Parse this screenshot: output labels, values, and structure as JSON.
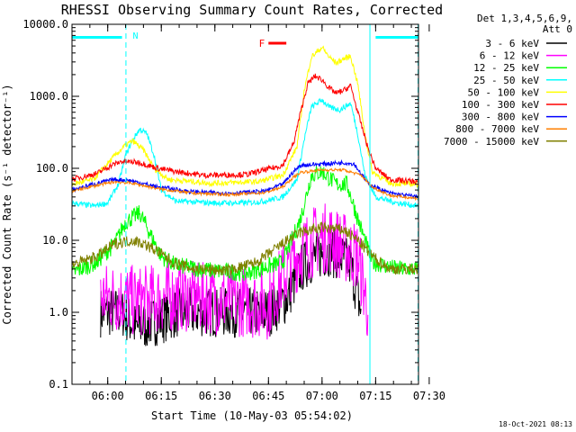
{
  "chart_data": {
    "type": "line",
    "title": "RHESSI Observing Summary Count Rates, Corrected",
    "xlabel": "Start Time (10-May-03 05:54:02)",
    "ylabel": "Corrected Count Rate (s⁻¹ detector⁻¹)",
    "ylog": true,
    "ylim": [
      0.1,
      10000
    ],
    "xlim_min": [
      -4,
      93
    ],
    "y_ticks": [
      {
        "v": 0.1,
        "label": "0.1"
      },
      {
        "v": 1,
        "label": "1.0"
      },
      {
        "v": 10,
        "label": "10.0"
      },
      {
        "v": 100,
        "label": "100.0"
      },
      {
        "v": 1000,
        "label": "1000.0"
      },
      {
        "v": 10000,
        "label": "10000.0"
      }
    ],
    "x_ticks": [
      {
        "v": 6,
        "label": "06:00"
      },
      {
        "v": 21,
        "label": "06:15"
      },
      {
        "v": 36,
        "label": "06:30"
      },
      {
        "v": 51,
        "label": "06:45"
      },
      {
        "v": 66,
        "label": "07:00"
      },
      {
        "v": 81,
        "label": "07:15"
      },
      {
        "v": 96,
        "label": "07:30"
      }
    ],
    "legend_header": [
      "Det 1,3,4,5,6,9,",
      "Att 0"
    ],
    "legend_position": "right",
    "series": [
      {
        "name": "3 - 6 keV",
        "color": "#000000",
        "gaps": [
          [
            -4,
            4
          ],
          [
            77,
            93
          ]
        ],
        "points": [
          [
            4,
            1
          ],
          [
            10,
            1
          ],
          [
            14,
            0.6
          ],
          [
            26,
            1
          ],
          [
            51,
            1
          ],
          [
            56,
            1.5
          ],
          [
            60,
            4
          ],
          [
            64,
            6
          ],
          [
            68,
            7
          ],
          [
            71,
            6
          ],
          [
            74,
            4.5
          ],
          [
            77,
            1
          ]
        ]
      },
      {
        "name": "6 - 12 keV",
        "color": "#ff00ff",
        "gaps": [
          [
            -4,
            4
          ],
          [
            79,
            93
          ]
        ],
        "points": [
          [
            4,
            1.6
          ],
          [
            10,
            1.6
          ],
          [
            14,
            1.4
          ],
          [
            26,
            1.7
          ],
          [
            51,
            1.3
          ],
          [
            55,
            3
          ],
          [
            60,
            7
          ],
          [
            64,
            10
          ],
          [
            68,
            11
          ],
          [
            72,
            8
          ],
          [
            76,
            6
          ],
          [
            79,
            1
          ]
        ]
      },
      {
        "name": "12 - 25 keV",
        "color": "#00ff00",
        "points": [
          [
            -4,
            3.5
          ],
          [
            3,
            5
          ],
          [
            8,
            9
          ],
          [
            11,
            18
          ],
          [
            15,
            24
          ],
          [
            18,
            12
          ],
          [
            21,
            6
          ],
          [
            25,
            4.5
          ],
          [
            35,
            3.8
          ],
          [
            45,
            3.5
          ],
          [
            55,
            5
          ],
          [
            60,
            20
          ],
          [
            63,
            80
          ],
          [
            66,
            90
          ],
          [
            70,
            60
          ],
          [
            73,
            60
          ],
          [
            76,
            20
          ],
          [
            80,
            5
          ],
          [
            87,
            4
          ],
          [
            93,
            4
          ]
        ]
      },
      {
        "name": "25 - 50 keV",
        "color": "#00ffff",
        "points": [
          [
            -4,
            33
          ],
          [
            2,
            30
          ],
          [
            6,
            33
          ],
          [
            9,
            60
          ],
          [
            11,
            150
          ],
          [
            13,
            250
          ],
          [
            15,
            350
          ],
          [
            17,
            300
          ],
          [
            19,
            150
          ],
          [
            21,
            50
          ],
          [
            25,
            35
          ],
          [
            35,
            33
          ],
          [
            45,
            33
          ],
          [
            50,
            35
          ],
          [
            55,
            40
          ],
          [
            59,
            70
          ],
          [
            61,
            250
          ],
          [
            63,
            700
          ],
          [
            66,
            900
          ],
          [
            68,
            700
          ],
          [
            71,
            650
          ],
          [
            74,
            800
          ],
          [
            76,
            300
          ],
          [
            78,
            80
          ],
          [
            81,
            40
          ],
          [
            87,
            33
          ],
          [
            93,
            30
          ]
        ]
      },
      {
        "name": "50 - 100 keV",
        "color": "#ffff00",
        "points": [
          [
            -4,
            60
          ],
          [
            2,
            70
          ],
          [
            8,
            150
          ],
          [
            11,
            210
          ],
          [
            13,
            240
          ],
          [
            16,
            180
          ],
          [
            19,
            100
          ],
          [
            23,
            70
          ],
          [
            35,
            62
          ],
          [
            48,
            65
          ],
          [
            55,
            80
          ],
          [
            59,
            200
          ],
          [
            61,
            1200
          ],
          [
            63,
            3500
          ],
          [
            66,
            4800
          ],
          [
            68,
            3500
          ],
          [
            70,
            2900
          ],
          [
            72,
            3300
          ],
          [
            74,
            3600
          ],
          [
            76,
            1500
          ],
          [
            78,
            300
          ],
          [
            80,
            90
          ],
          [
            85,
            62
          ],
          [
            93,
            60
          ]
        ]
      },
      {
        "name": "100 - 300 keV",
        "color": "#ff0000",
        "points": [
          [
            -4,
            70
          ],
          [
            3,
            85
          ],
          [
            7,
            110
          ],
          [
            10,
            125
          ],
          [
            15,
            120
          ],
          [
            20,
            100
          ],
          [
            25,
            90
          ],
          [
            33,
            80
          ],
          [
            45,
            82
          ],
          [
            55,
            110
          ],
          [
            58,
            220
          ],
          [
            60,
            600
          ],
          [
            62,
            1500
          ],
          [
            64,
            1900
          ],
          [
            66,
            1700
          ],
          [
            68,
            1300
          ],
          [
            70,
            1100
          ],
          [
            72,
            1200
          ],
          [
            74,
            1400
          ],
          [
            76,
            600
          ],
          [
            79,
            180
          ],
          [
            81,
            100
          ],
          [
            85,
            70
          ],
          [
            93,
            65
          ]
        ]
      },
      {
        "name": "300 - 800 keV",
        "color": "#0000ff",
        "points": [
          [
            -4,
            50
          ],
          [
            3,
            62
          ],
          [
            8,
            70
          ],
          [
            12,
            68
          ],
          [
            20,
            55
          ],
          [
            30,
            47
          ],
          [
            40,
            45
          ],
          [
            50,
            48
          ],
          [
            55,
            60
          ],
          [
            58,
            90
          ],
          [
            60,
            110
          ],
          [
            66,
            115
          ],
          [
            72,
            120
          ],
          [
            75,
            115
          ],
          [
            79,
            60
          ],
          [
            85,
            45
          ],
          [
            93,
            40
          ]
        ]
      },
      {
        "name": "800 - 7000 keV",
        "color": "#ff7f00",
        "points": [
          [
            -4,
            48
          ],
          [
            3,
            58
          ],
          [
            8,
            65
          ],
          [
            13,
            62
          ],
          [
            20,
            52
          ],
          [
            30,
            45
          ],
          [
            40,
            43
          ],
          [
            50,
            46
          ],
          [
            55,
            55
          ],
          [
            58,
            75
          ],
          [
            60,
            88
          ],
          [
            66,
            95
          ],
          [
            72,
            95
          ],
          [
            77,
            80
          ],
          [
            80,
            55
          ],
          [
            85,
            42
          ],
          [
            93,
            38
          ]
        ]
      },
      {
        "name": "7000 - 15000 keV",
        "color": "#808000",
        "points": [
          [
            -4,
            4.5
          ],
          [
            3,
            6
          ],
          [
            8,
            9
          ],
          [
            13,
            10
          ],
          [
            16,
            9
          ],
          [
            20,
            7
          ],
          [
            24,
            5
          ],
          [
            30,
            4
          ],
          [
            40,
            3.8
          ],
          [
            48,
            5
          ],
          [
            55,
            9
          ],
          [
            60,
            13
          ],
          [
            66,
            15
          ],
          [
            72,
            14
          ],
          [
            76,
            10
          ],
          [
            80,
            6
          ],
          [
            85,
            4
          ],
          [
            93,
            4
          ]
        ]
      }
    ],
    "attenuator_bars": [
      [
        -4,
        10
      ],
      [
        81,
        93
      ]
    ],
    "vlines": [
      {
        "x": 11.1,
        "color": "#00ffff",
        "style": "dashed"
      },
      {
        "x": 92.9,
        "color": "#00ffff",
        "style": "dashed"
      },
      {
        "x": 79.4,
        "color": "#00ffff",
        "style": "solid"
      }
    ],
    "flare_bar": {
      "label": "F",
      "label_color": "#ff0000",
      "x": [
        51,
        56
      ],
      "y": 5500,
      "color": "#ff0000"
    },
    "n_marker": {
      "label": "N",
      "x": 12.5,
      "y": 5500,
      "color": "#00ffff"
    },
    "small_marker": {
      "x": 13.6,
      "y": [
        0.55,
        0.75
      ]
    },
    "timestamp": "18-Oct-2021 08:13"
  }
}
